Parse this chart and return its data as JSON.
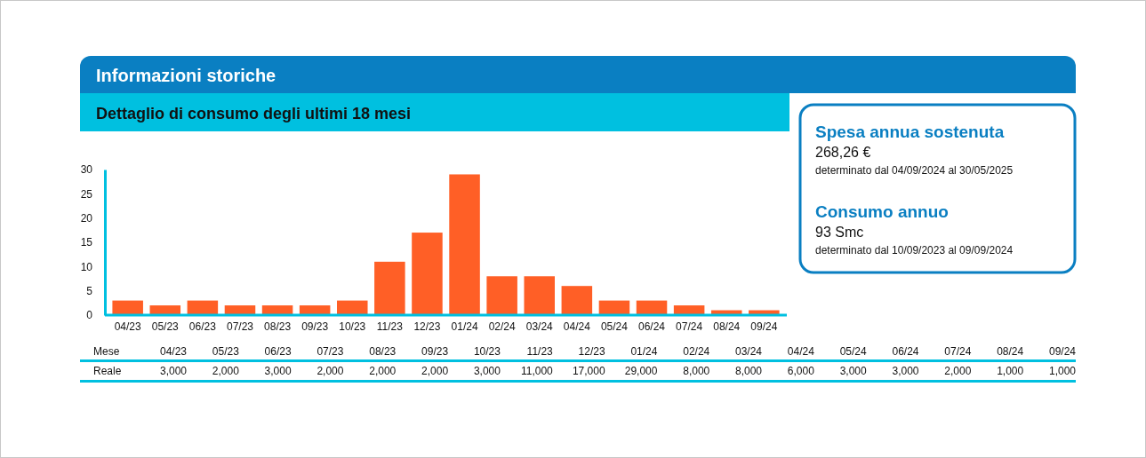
{
  "chart_data": [
    {
      "type": "bar",
      "title": "Informazioni storiche",
      "subtitle": "Dettaglio di consumo degli ultimi 18 mesi",
      "categories": [
        "04/23",
        "05/23",
        "06/23",
        "07/23",
        "08/23",
        "09/23",
        "10/23",
        "11/23",
        "12/23",
        "01/24",
        "02/24",
        "03/24",
        "04/24",
        "05/24",
        "06/24",
        "07/24",
        "08/24",
        "09/24"
      ],
      "values": [
        3,
        2,
        3,
        2,
        2,
        2,
        3,
        11,
        17,
        29,
        8,
        8,
        6,
        3,
        3,
        2,
        1,
        1
      ],
      "color": "#ff5f26",
      "ylim": [
        0,
        30
      ],
      "yticks": [
        0,
        5,
        10,
        15,
        20,
        25,
        30
      ]
    },
    {
      "type": "other",
      "annotations": [
        "Mese",
        "04/23",
        "05/23",
        "06/23",
        "07/23",
        "08/23",
        "09/23",
        "10/23",
        "11/23",
        "12/23",
        "01/24",
        "02/24",
        "03/24",
        "04/24",
        "05/24",
        "06/24",
        "07/24",
        "08/24",
        "09/24",
        "Reale",
        "3,000",
        "2,000",
        "3,000",
        "2,000",
        "2,000",
        "2,000",
        "3,000",
        "11,000",
        "17,000",
        "29,000",
        "8,000",
        "8,000",
        "6,000",
        "3,000",
        "3,000",
        "2,000",
        "1,000",
        "1,000"
      ]
    },
    {
      "type": "other",
      "annotations": [
        "Spesa annua sostenuta",
        "268,26 €",
        "determinato dal 04/09/2024 al 30/05/2025",
        "Consumo annuo",
        "93 Smc",
        "determinato dal 10/09/2023 al 09/09/2024"
      ]
    }
  ]
}
